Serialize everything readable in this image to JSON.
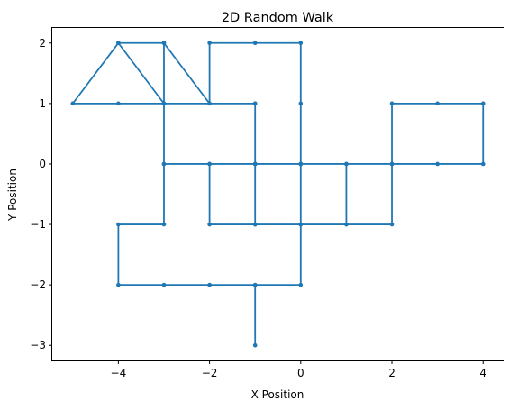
{
  "chart_data": {
    "type": "line",
    "title": "2D Random Walk",
    "xlabel": "X Position",
    "ylabel": "Y Position",
    "xlim": [
      -5.45,
      4.45
    ],
    "ylim": [
      -3.25,
      2.25
    ],
    "xticks": [
      -4,
      -2,
      0,
      2,
      4
    ],
    "yticks": [
      -3,
      -2,
      -1,
      0,
      1,
      2
    ],
    "xtick_labels": [
      "−4",
      "−2",
      "0",
      "2",
      "4"
    ],
    "ytick_labels": [
      "−3",
      "−2",
      "−1",
      "0",
      "1",
      "2"
    ],
    "grid": false,
    "legend": "none",
    "color": "#1f77b4",
    "series": [
      {
        "x": [
          -1,
          -1,
          -2,
          -3,
          -4,
          -4,
          -3,
          -3,
          -3,
          -4,
          -3,
          -2,
          -1,
          -1,
          -1,
          0,
          0,
          0,
          1,
          2,
          2,
          3,
          4,
          4,
          3,
          2,
          2,
          1,
          0,
          -1,
          -2,
          -3,
          -3,
          -3,
          -4,
          -5,
          -4,
          -3,
          -2,
          -2,
          -1,
          0,
          0,
          0,
          -1,
          -2,
          -2,
          -1,
          0,
          1,
          1,
          0,
          -1,
          -1,
          -1,
          -1,
          0,
          0,
          -1,
          -2
        ],
        "y": [
          -3,
          -2,
          -2,
          -2,
          -2,
          -1,
          -1,
          0,
          1,
          2,
          2,
          1,
          1,
          0,
          -1,
          -1,
          0,
          -1,
          -1,
          -1,
          0,
          0,
          0,
          1,
          1,
          1,
          0,
          0,
          0,
          0,
          0,
          0,
          1,
          2,
          2,
          1,
          1,
          1,
          1,
          2,
          2,
          2,
          1,
          0,
          0,
          0,
          -1,
          -1,
          -1,
          -1,
          0,
          0,
          0,
          1,
          0,
          -1,
          -1,
          -2,
          -2,
          -2
        ]
      }
    ]
  }
}
